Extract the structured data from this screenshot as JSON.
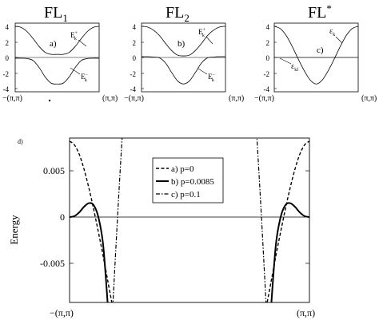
{
  "figure": {
    "panels": [
      {
        "id": "FL1",
        "title_main": "FL",
        "title_sub": "1",
        "letter": "a)",
        "label_upper": "E",
        "label_upper_sup": "+",
        "label_upper_sub": "k",
        "label_lower": "E",
        "label_lower_sup": "−",
        "label_lower_sub": "k",
        "yticks": [
          "4",
          "2",
          "0",
          "-2",
          "-4"
        ],
        "x_left": "−(π,π)",
        "x_right": "(π,π)"
      },
      {
        "id": "FL2",
        "title_main": "FL",
        "title_sub": "2",
        "letter": "b)",
        "label_upper": "E",
        "label_upper_sup": "+",
        "label_upper_sub": "k",
        "label_lower": "E",
        "label_lower_sup": "−",
        "label_lower_sub": "k",
        "yticks": [
          "4",
          "2",
          "0",
          "-2",
          "-4"
        ],
        "x_left": "−(π,π)",
        "x_right": "(π,π)"
      },
      {
        "id": "FLstar",
        "title_main": "FL",
        "title_sup": "*",
        "letter": "c)",
        "label_upper": "ε",
        "label_upper_sub": "k",
        "label_lower": "ε",
        "label_lower_sub": "kf",
        "yticks": [
          "4",
          "2",
          "0",
          "-2",
          "-4"
        ],
        "x_left": "−(π,π)",
        "x_right": "(π,π)"
      }
    ],
    "panel_d": {
      "letter": "d)",
      "ylabel": "Energy",
      "yticks": [
        "0.005",
        "0",
        "-0.005"
      ],
      "x_left": "−(π,π)",
      "x_right": "(π,π)",
      "legend": [
        "a) p=0",
        "b) p=0.0085",
        "c) p=0.1"
      ]
    }
  },
  "chart_data": [
    {
      "type": "line",
      "panel": "FL1",
      "x_range": [
        "−(π,π)",
        "(π,π)"
      ],
      "ylim": [
        -4.4,
        4.4
      ],
      "series": [
        {
          "values": [
            4.0,
            3.85,
            3.3,
            2.4,
            1.4,
            0.65,
            0.4,
            0.4,
            0.4,
            0.65,
            1.4,
            2.4,
            3.3,
            3.85,
            4.0
          ]
        },
        {
          "values": [
            -0.1,
            -0.1,
            -0.15,
            -0.4,
            -1.3,
            -2.5,
            -3.3,
            -3.4,
            -3.3,
            -2.5,
            -1.3,
            -0.4,
            -0.15,
            -0.1,
            -0.1
          ]
        }
      ]
    },
    {
      "type": "line",
      "panel": "FL2",
      "x_range": [
        "−(π,π)",
        "(π,π)"
      ],
      "ylim": [
        -4.4,
        4.4
      ],
      "series": [
        {
          "values": [
            4.0,
            3.9,
            3.5,
            2.8,
            1.8,
            0.9,
            0.3,
            0.2,
            0.3,
            0.9,
            1.8,
            2.8,
            3.5,
            3.9,
            4.0
          ]
        },
        {
          "values": [
            0.1,
            0.1,
            0.05,
            -0.05,
            -0.7,
            -1.9,
            -3.0,
            -3.4,
            -3.0,
            -1.9,
            -0.7,
            -0.05,
            0.05,
            0.1,
            0.1
          ]
        }
      ]
    },
    {
      "type": "line",
      "panel": "FLstar",
      "x_range": [
        "−(π,π)",
        "(π,π)"
      ],
      "ylim": [
        -4.4,
        4.4
      ],
      "series": [
        {
          "values": [
            4.0,
            3.7,
            2.8,
            1.4,
            -0.2,
            -1.7,
            -2.9,
            -3.4,
            -2.9,
            -1.7,
            -0.2,
            1.4,
            2.8,
            3.7,
            4.0
          ]
        },
        {
          "values": [
            0.0,
            0.0,
            0.0,
            0.0,
            0.0,
            0.0,
            0.0,
            0.0,
            0.0,
            0.0,
            0.0,
            0.0,
            0.0,
            0.0,
            0.0
          ]
        }
      ]
    },
    {
      "type": "line",
      "panel": "d",
      "ylabel": "Energy",
      "x_range": [
        "−(π,π)",
        "(π,π)"
      ],
      "ylim": [
        -0.0085,
        0.0085
      ],
      "x": [
        0.0,
        0.02,
        0.04,
        0.06,
        0.08,
        0.1,
        0.12,
        0.14,
        0.16,
        0.18,
        0.2,
        0.22,
        0.25,
        0.3,
        0.4,
        0.5,
        0.6,
        0.7,
        0.75,
        0.78,
        0.8,
        0.82,
        0.84,
        0.86,
        0.88,
        0.9,
        0.92,
        0.94,
        0.96,
        0.98,
        1.0
      ],
      "series": [
        {
          "name": "a) p=0",
          "values": [
            0.0082,
            0.0078,
            0.0068,
            0.0052,
            0.0032,
            0.0009,
            -0.0016,
            -0.0042,
            -0.007,
            -0.0085,
            null,
            null,
            null,
            null,
            null,
            null,
            null,
            null,
            null,
            null,
            null,
            -0.0085,
            -0.007,
            -0.0042,
            -0.0016,
            0.0009,
            0.0032,
            0.0052,
            0.0068,
            0.0078,
            0.0082
          ]
        },
        {
          "name": "b) p=0.0085",
          "values": [
            0.0,
            0.0001,
            0.0005,
            0.0011,
            0.0015,
            0.0013,
            0.0,
            -0.003,
            -0.0085,
            null,
            null,
            null,
            null,
            null,
            null,
            null,
            null,
            null,
            null,
            null,
            null,
            null,
            -0.0085,
            -0.003,
            0.0,
            0.0013,
            0.0015,
            0.0011,
            0.0005,
            0.0001,
            0.0
          ]
        },
        {
          "name": "c) p=0.1",
          "values": [
            null,
            null,
            null,
            null,
            null,
            null,
            null,
            null,
            null,
            -0.0085,
            0.0,
            0.0085,
            null,
            null,
            null,
            null,
            null,
            null,
            null,
            0.0085,
            0.0,
            -0.0085,
            null,
            null,
            null,
            null,
            null,
            null,
            null,
            null,
            null
          ]
        }
      ]
    }
  ]
}
